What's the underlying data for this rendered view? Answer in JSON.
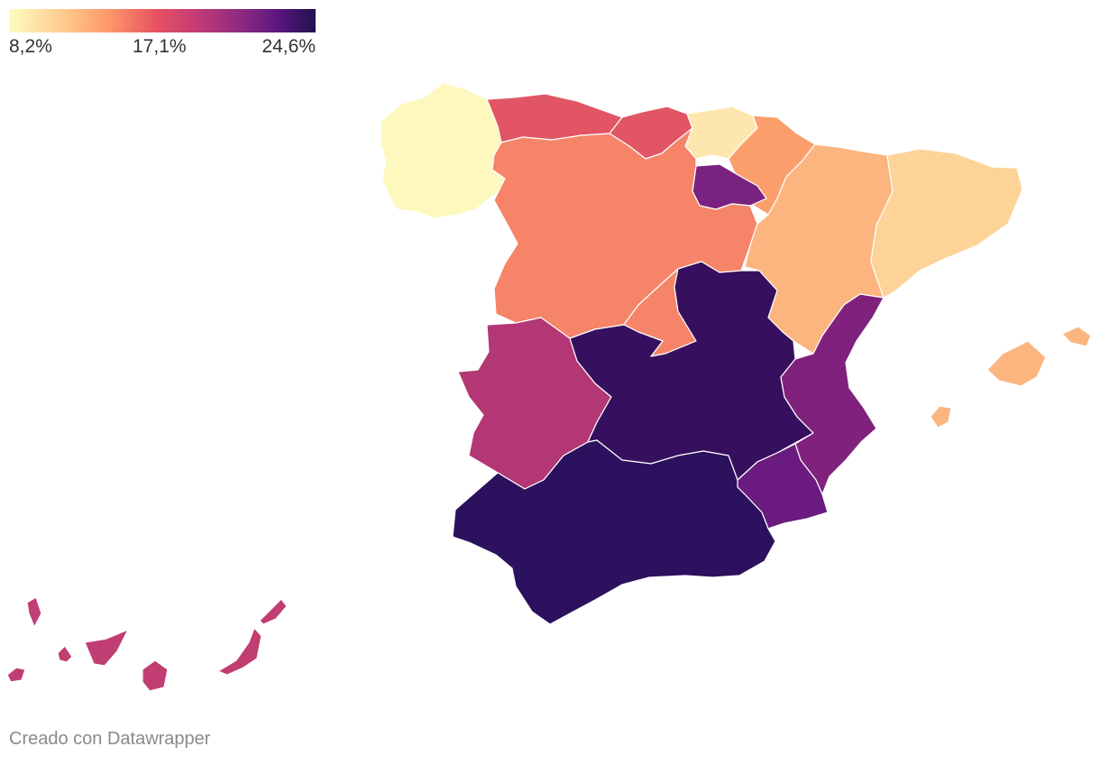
{
  "legend": {
    "min_label": "8,2%",
    "mid_label": "17,1%",
    "max_label": "24,6%",
    "min_value": 8.2,
    "mid_value": 17.1,
    "max_value": 24.6,
    "scale": "magma"
  },
  "regions": [
    {
      "name": "Galicia",
      "color": "#fdf8bd"
    },
    {
      "name": "Asturias",
      "color": "#e25565"
    },
    {
      "name": "Cantabria",
      "color": "#e25565"
    },
    {
      "name": "País Vasco",
      "color": "#fde7ae"
    },
    {
      "name": "Navarra",
      "color": "#fc9e6c"
    },
    {
      "name": "La Rioja",
      "color": "#7a2280"
    },
    {
      "name": "Castilla y León",
      "color": "#f58469"
    },
    {
      "name": "Aragón",
      "color": "#fdb580"
    },
    {
      "name": "Cataluña",
      "color": "#fdd397"
    },
    {
      "name": "Comunidad de Madrid",
      "color": "#f58469"
    },
    {
      "name": "Extremadura",
      "color": "#b33774"
    },
    {
      "name": "Castilla-La Mancha",
      "color": "#36105e"
    },
    {
      "name": "Comunitat Valenciana",
      "color": "#80227d"
    },
    {
      "name": "Región de Murcia",
      "color": "#6b1b7f"
    },
    {
      "name": "Andalucía",
      "color": "#2c115f"
    },
    {
      "name": "Illes Balears",
      "color": "#fdb580"
    },
    {
      "name": "Canarias",
      "color": "#c13e72"
    }
  ],
  "footer": {
    "credit": "Creado con Datawrapper"
  }
}
